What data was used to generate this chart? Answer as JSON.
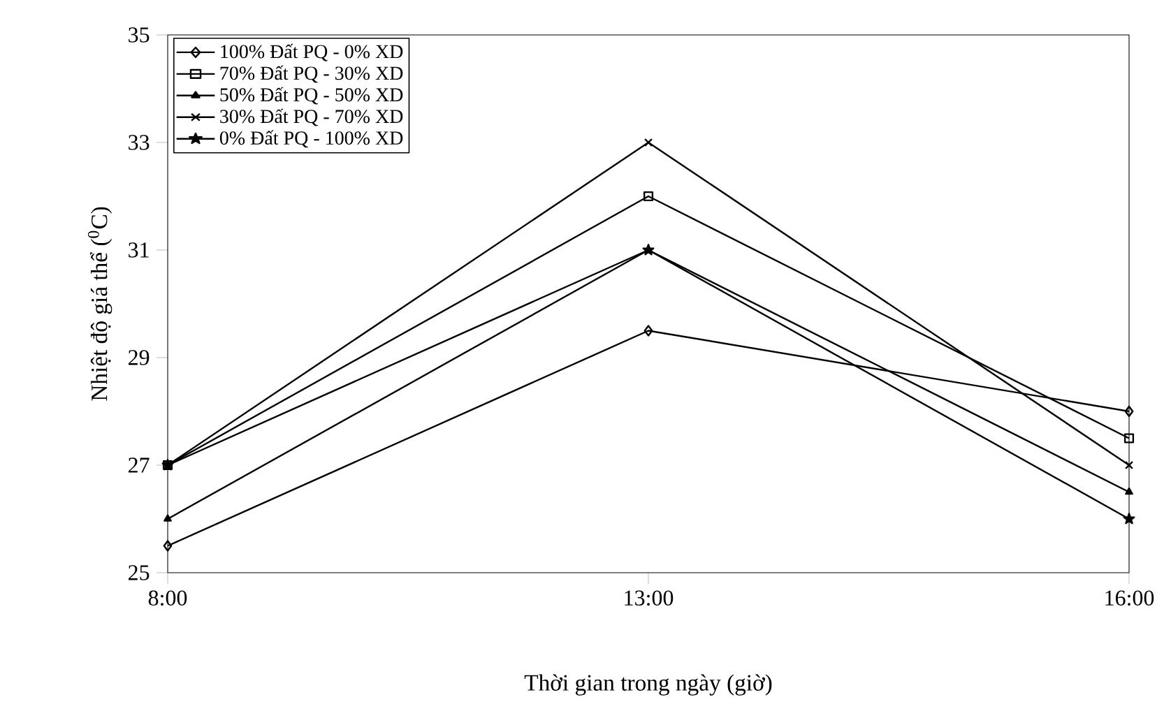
{
  "chart_data": {
    "type": "line",
    "xlabel": "Thời gian trong ngày (giờ)",
    "ylabel": "Nhiệt độ giá thể ($^{0}$C)",
    "categories": [
      "8:00",
      "13:00",
      "16:00"
    ],
    "ylim": [
      25,
      35
    ],
    "yticks": [
      25,
      27,
      29,
      31,
      33,
      35
    ],
    "grid": false,
    "legend": "top left",
    "line_style": "solid",
    "series": [
      {
        "name": "100% Đất PQ - 0% XD",
        "color": "#000000",
        "marker": "diamond",
        "values": [
          25.5,
          29.5,
          28
        ]
      },
      {
        "name": "70% Đất PQ - 30% XD",
        "color": "#000000",
        "marker": "square",
        "values": [
          27,
          32,
          27.5
        ]
      },
      {
        "name": "50% Đất PQ - 50% XD",
        "color": "#000000",
        "marker": "triangle",
        "values": [
          26,
          31,
          26.5
        ]
      },
      {
        "name": "30% Đất PQ - 70% XD",
        "color": "#000000",
        "marker": "cross",
        "values": [
          27,
          33,
          27
        ]
      },
      {
        "name": "0% Đất PQ - 100% XD",
        "color": "#000000",
        "marker": "star",
        "values": [
          27,
          31,
          26
        ]
      }
    ]
  }
}
